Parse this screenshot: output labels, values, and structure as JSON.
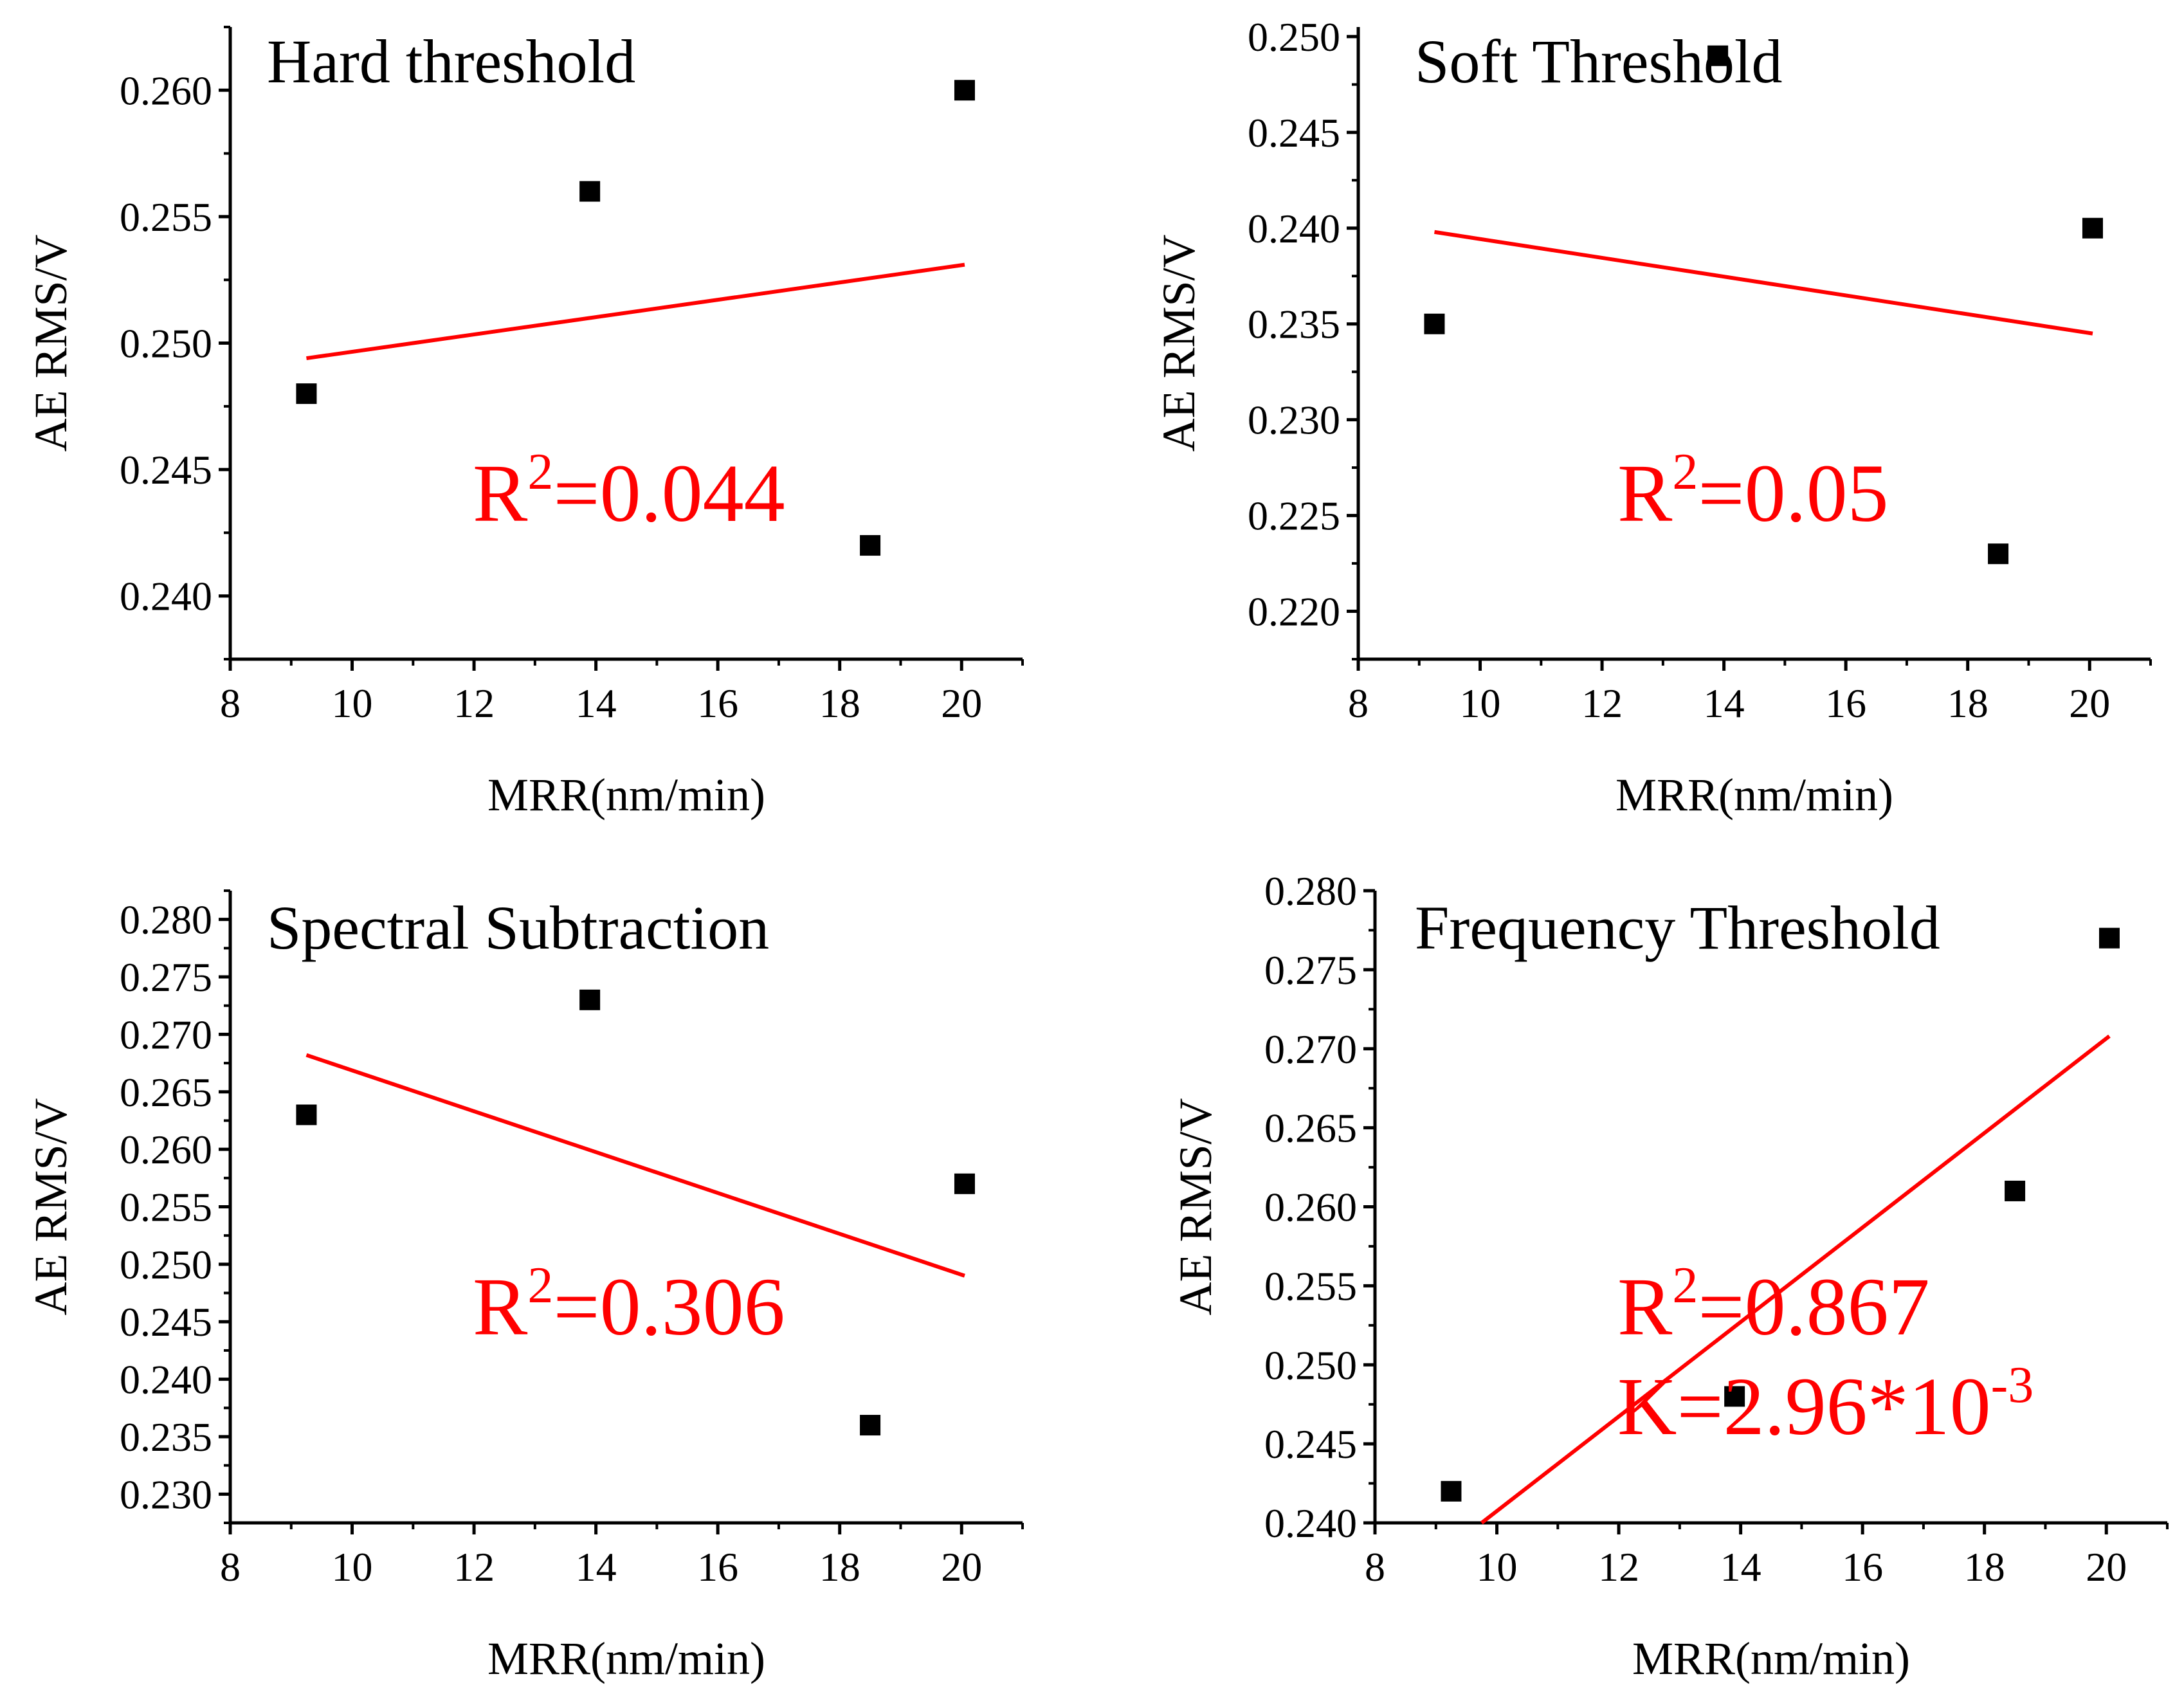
{
  "chart_data": [
    {
      "type": "scatter",
      "title": "Hard threshold",
      "xlabel": "MRR(nm/min)",
      "ylabel": "AE RMS/V",
      "xlim": [
        8,
        21
      ],
      "ylim": [
        0.2375,
        0.2625
      ],
      "xticks": [
        "8",
        "10",
        "12",
        "14",
        "16",
        "18",
        "20"
      ],
      "yticks": [
        "0.240",
        "0.245",
        "0.250",
        "0.255",
        "0.260"
      ],
      "points": [
        {
          "x": 9.25,
          "y": 0.248
        },
        {
          "x": 13.9,
          "y": 0.256
        },
        {
          "x": 18.5,
          "y": 0.242
        },
        {
          "x": 20.05,
          "y": 0.26
        }
      ],
      "fit_line": {
        "x": [
          9.25,
          20.05
        ],
        "y": [
          0.2494,
          0.2531
        ],
        "color": "#ff0000"
      },
      "annotation": {
        "r2_prefix": "R",
        "r2_sup": "2",
        "r2_value": "=0.044",
        "k_prefix": "",
        "k_value": "",
        "k_sup": ""
      }
    },
    {
      "type": "scatter",
      "title": "Soft Threshold",
      "xlabel": "MRR(nm/min)",
      "ylabel": "AE RMS/V",
      "xlim": [
        8,
        21
      ],
      "ylim": [
        0.2175,
        0.2505
      ],
      "xticks": [
        "8",
        "10",
        "12",
        "14",
        "16",
        "18",
        "20"
      ],
      "yticks": [
        "0.220",
        "0.225",
        "0.230",
        "0.235",
        "0.240",
        "0.245",
        "0.250"
      ],
      "points": [
        {
          "x": 9.25,
          "y": 0.235
        },
        {
          "x": 13.9,
          "y": 0.249
        },
        {
          "x": 18.5,
          "y": 0.223
        },
        {
          "x": 20.05,
          "y": 0.24
        }
      ],
      "fit_line": {
        "x": [
          9.25,
          20.05
        ],
        "y": [
          0.2398,
          0.2345
        ],
        "color": "#ff0000"
      },
      "annotation": {
        "r2_prefix": "R",
        "r2_sup": "2",
        "r2_value": "=0.05",
        "k_prefix": "",
        "k_value": "",
        "k_sup": ""
      }
    },
    {
      "type": "scatter",
      "title": "Spectral Subtraction",
      "xlabel": "MRR(nm/min)",
      "ylabel": "AE RMS/V",
      "xlim": [
        8,
        21
      ],
      "ylim": [
        0.2275,
        0.2825
      ],
      "xticks": [
        "8",
        "10",
        "12",
        "14",
        "16",
        "18",
        "20"
      ],
      "yticks": [
        "0.230",
        "0.235",
        "0.240",
        "0.245",
        "0.250",
        "0.255",
        "0.260",
        "0.265",
        "0.270",
        "0.275",
        "0.280"
      ],
      "points": [
        {
          "x": 9.25,
          "y": 0.263
        },
        {
          "x": 13.9,
          "y": 0.273
        },
        {
          "x": 18.5,
          "y": 0.236
        },
        {
          "x": 20.05,
          "y": 0.257
        }
      ],
      "fit_line": {
        "x": [
          9.25,
          20.05
        ],
        "y": [
          0.2682,
          0.249
        ],
        "color": "#ff0000"
      },
      "annotation": {
        "r2_prefix": "R",
        "r2_sup": "2",
        "r2_value": "=0.306",
        "k_prefix": "",
        "k_value": "",
        "k_sup": ""
      }
    },
    {
      "type": "scatter",
      "title": "Frequency Threshold",
      "xlabel": "MRR(nm/min)",
      "ylabel": "AE RMS/V",
      "xlim": [
        8,
        21
      ],
      "ylim": [
        0.24,
        0.28
      ],
      "xticks": [
        "8",
        "10",
        "12",
        "14",
        "16",
        "18",
        "20"
      ],
      "yticks": [
        "0.240",
        "0.245",
        "0.250",
        "0.255",
        "0.260",
        "0.265",
        "0.270",
        "0.275",
        "0.280"
      ],
      "points": [
        {
          "x": 9.25,
          "y": 0.242
        },
        {
          "x": 13.9,
          "y": 0.248
        },
        {
          "x": 18.5,
          "y": 0.261
        },
        {
          "x": 20.05,
          "y": 0.277
        }
      ],
      "fit_line": {
        "x": [
          9.75,
          20.05
        ],
        "y": [
          0.24,
          0.2708
        ],
        "color": "#ff0000"
      },
      "annotation": {
        "r2_prefix": "R",
        "r2_sup": "2",
        "r2_value": "=0.867",
        "k_prefix": "K",
        "k_value": "=2.96*10",
        "k_sup": "-3"
      }
    }
  ]
}
